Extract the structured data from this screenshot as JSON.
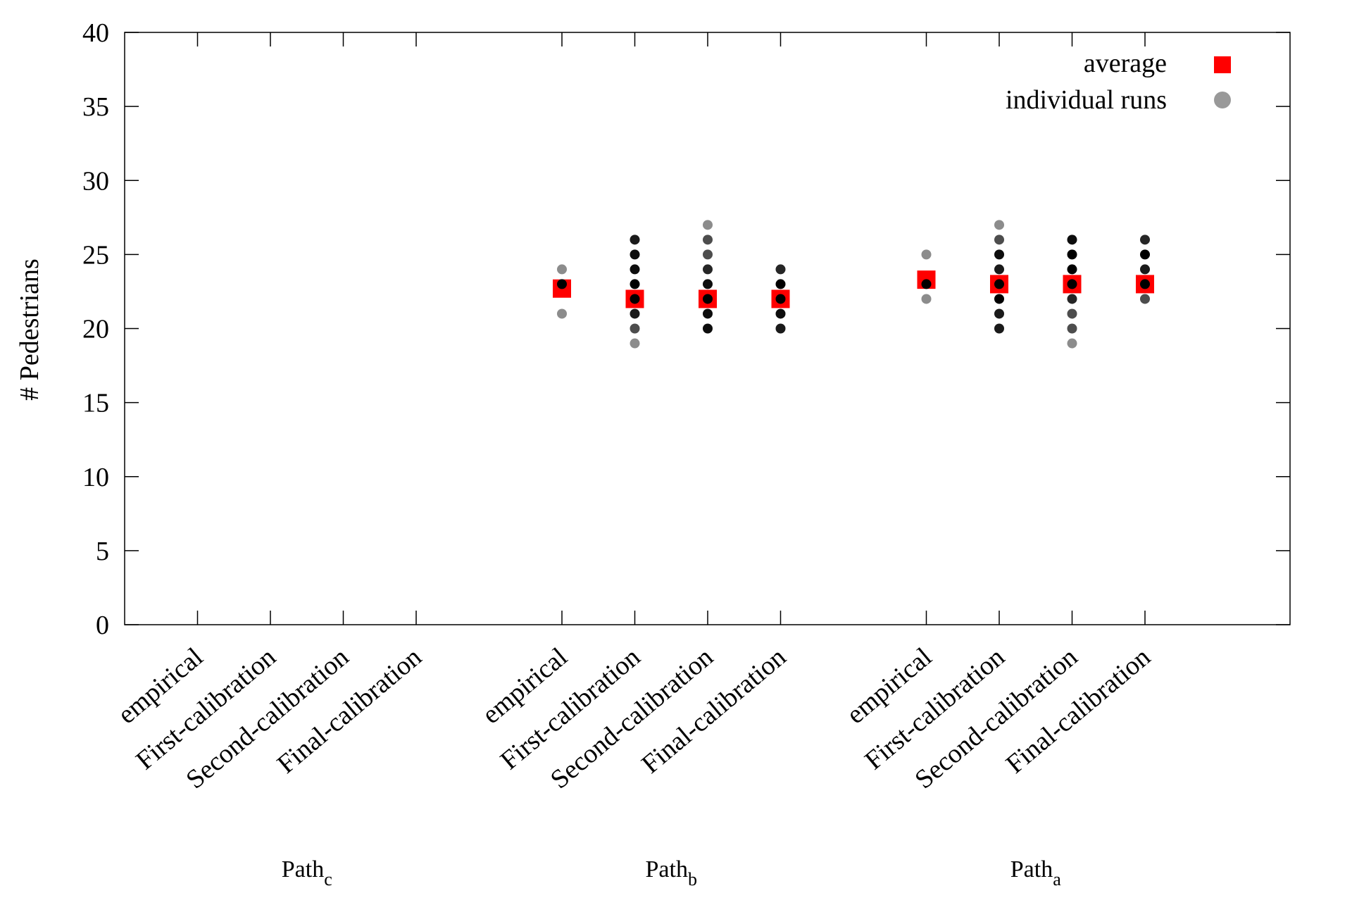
{
  "chart_data": {
    "type": "scatter",
    "title": "",
    "xlabel": "",
    "ylabel": "# Pedestrians",
    "ylim": [
      0,
      40
    ],
    "yticks": [
      0,
      5,
      10,
      15,
      20,
      25,
      30,
      35,
      40
    ],
    "legend": {
      "placement": "top-right",
      "entries": [
        {
          "name": "average",
          "marker": "square",
          "color": "#ff0000"
        },
        {
          "name": "individual runs",
          "marker": "circle",
          "color": "#999999"
        }
      ]
    },
    "categories": [
      "empirical",
      "First-calibration",
      "Second-calibration",
      "Final-calibration"
    ],
    "groups": [
      {
        "label_main": "Path",
        "label_sub": "c",
        "items": [
          {
            "category": "empirical",
            "average": null,
            "runs": []
          },
          {
            "category": "First-calibration",
            "average": null,
            "runs": []
          },
          {
            "category": "Second-calibration",
            "average": null,
            "runs": []
          },
          {
            "category": "Final-calibration",
            "average": null,
            "runs": []
          }
        ]
      },
      {
        "label_main": "Path",
        "label_sub": "b",
        "items": [
          {
            "category": "empirical",
            "average": 22.7,
            "runs": [
              {
                "y": 21,
                "shade": 0.55
              },
              {
                "y": 23,
                "shade": 0.0
              },
              {
                "y": 24,
                "shade": 0.55
              }
            ]
          },
          {
            "category": "First-calibration",
            "average": 22.0,
            "runs": [
              {
                "y": 19,
                "shade": 0.55
              },
              {
                "y": 20,
                "shade": 0.3
              },
              {
                "y": 21,
                "shade": 0.1
              },
              {
                "y": 22,
                "shade": 0.0
              },
              {
                "y": 23,
                "shade": 0.0
              },
              {
                "y": 24,
                "shade": 0.05
              },
              {
                "y": 25,
                "shade": 0.05
              },
              {
                "y": 26,
                "shade": 0.1
              }
            ]
          },
          {
            "category": "Second-calibration",
            "average": 22.0,
            "runs": [
              {
                "y": 20,
                "shade": 0.05
              },
              {
                "y": 21,
                "shade": 0.05
              },
              {
                "y": 22,
                "shade": 0.0
              },
              {
                "y": 23,
                "shade": 0.05
              },
              {
                "y": 24,
                "shade": 0.15
              },
              {
                "y": 25,
                "shade": 0.3
              },
              {
                "y": 26,
                "shade": 0.3
              },
              {
                "y": 27,
                "shade": 0.55
              }
            ]
          },
          {
            "category": "Final-calibration",
            "average": 22.0,
            "runs": [
              {
                "y": 20,
                "shade": 0.1
              },
              {
                "y": 21,
                "shade": 0.05
              },
              {
                "y": 22,
                "shade": 0.0
              },
              {
                "y": 23,
                "shade": 0.0
              },
              {
                "y": 24,
                "shade": 0.15
              }
            ]
          }
        ]
      },
      {
        "label_main": "Path",
        "label_sub": "a",
        "items": [
          {
            "category": "empirical",
            "average": 23.3,
            "runs": [
              {
                "y": 22,
                "shade": 0.55
              },
              {
                "y": 23,
                "shade": 0.0
              },
              {
                "y": 25,
                "shade": 0.55
              }
            ]
          },
          {
            "category": "First-calibration",
            "average": 23.0,
            "runs": [
              {
                "y": 20,
                "shade": 0.1
              },
              {
                "y": 21,
                "shade": 0.1
              },
              {
                "y": 22,
                "shade": 0.0
              },
              {
                "y": 23,
                "shade": 0.0
              },
              {
                "y": 24,
                "shade": 0.1
              },
              {
                "y": 25,
                "shade": 0.05
              },
              {
                "y": 26,
                "shade": 0.3
              },
              {
                "y": 27,
                "shade": 0.55
              }
            ]
          },
          {
            "category": "Second-calibration",
            "average": 23.0,
            "runs": [
              {
                "y": 19,
                "shade": 0.55
              },
              {
                "y": 20,
                "shade": 0.3
              },
              {
                "y": 21,
                "shade": 0.3
              },
              {
                "y": 22,
                "shade": 0.15
              },
              {
                "y": 23,
                "shade": 0.0
              },
              {
                "y": 24,
                "shade": 0.0
              },
              {
                "y": 25,
                "shade": 0.0
              },
              {
                "y": 26,
                "shade": 0.05
              }
            ]
          },
          {
            "category": "Final-calibration",
            "average": 23.0,
            "runs": [
              {
                "y": 22,
                "shade": 0.3
              },
              {
                "y": 23,
                "shade": 0.0
              },
              {
                "y": 24,
                "shade": 0.1
              },
              {
                "y": 25,
                "shade": 0.0
              },
              {
                "y": 26,
                "shade": 0.15
              }
            ]
          }
        ]
      }
    ]
  }
}
